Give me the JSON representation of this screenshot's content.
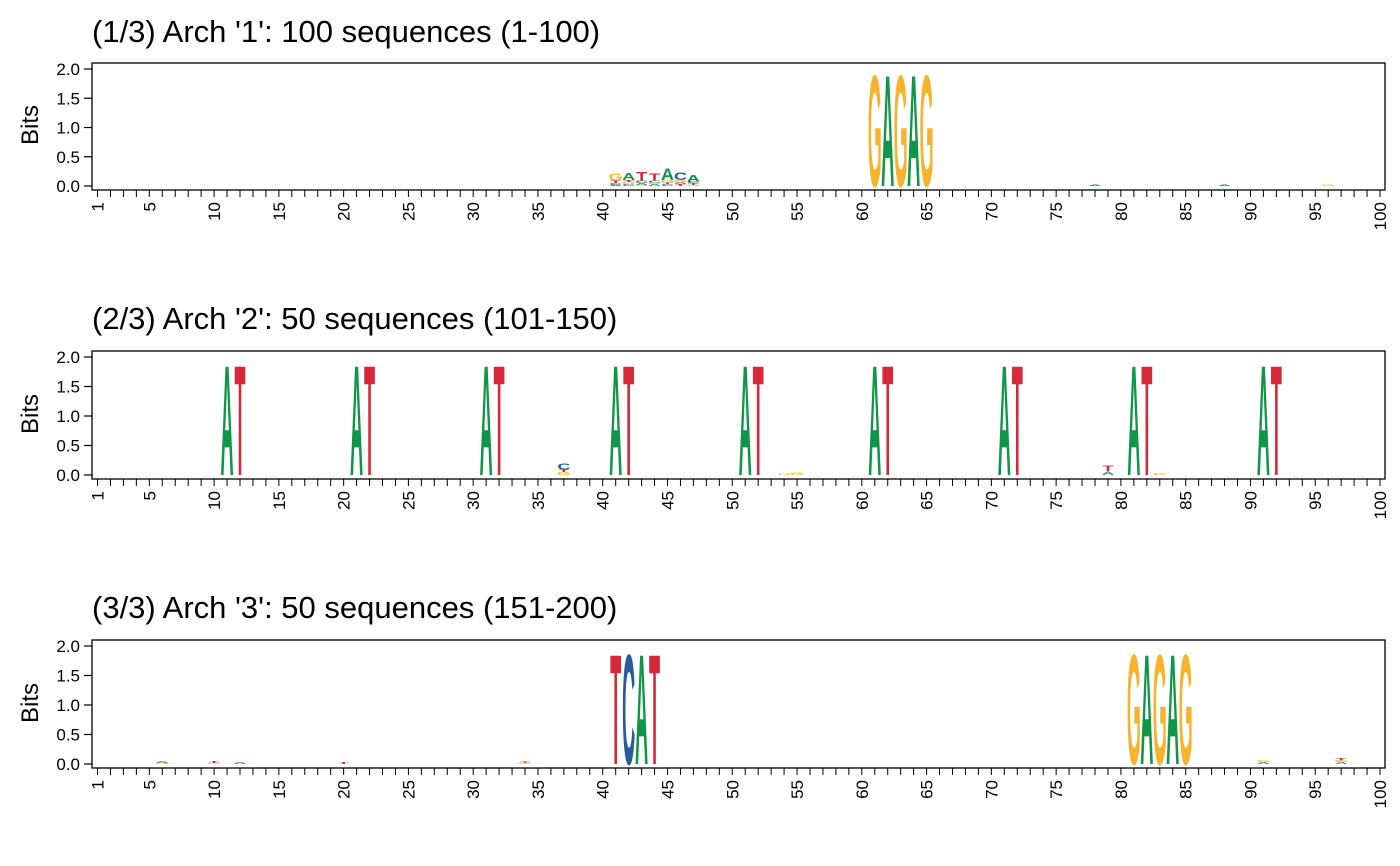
{
  "colors": {
    "A": "#109648",
    "C": "#255C99",
    "G": "#F7B32B",
    "T": "#D62839"
  },
  "chart_data": [
    {
      "type": "seqlogo",
      "title": "(1/3) Arch '1': 100 sequences (1-100)",
      "xlabel": "",
      "ylabel": "Bits",
      "ylim": [
        0,
        2
      ],
      "yticks": [
        "0.0",
        "0.5",
        "1.0",
        "1.5",
        "2.0"
      ],
      "xticks": [
        "1",
        "5",
        "10",
        "15",
        "20",
        "25",
        "30",
        "35",
        "40",
        "45",
        "50",
        "55",
        "60",
        "65",
        "70",
        "75",
        "80",
        "85",
        "90",
        "95",
        "100"
      ],
      "positions": 100,
      "stacks": [
        {
          "pos": 41,
          "letters": [
            [
              "A",
              0.02
            ],
            [
              "C",
              0.03
            ],
            [
              "T",
              0.04
            ],
            [
              "G",
              0.12
            ]
          ]
        },
        {
          "pos": 42,
          "letters": [
            [
              "C",
              0.03
            ],
            [
              "G",
              0.04
            ],
            [
              "T",
              0.03
            ],
            [
              "A",
              0.12
            ]
          ]
        },
        {
          "pos": 43,
          "letters": [
            [
              "G",
              0.02
            ],
            [
              "A",
              0.03
            ],
            [
              "C",
              0.04
            ],
            [
              "T",
              0.15
            ]
          ]
        },
        {
          "pos": 44,
          "letters": [
            [
              "A",
              0.03
            ],
            [
              "G",
              0.03
            ],
            [
              "C",
              0.03
            ],
            [
              "T",
              0.13
            ]
          ]
        },
        {
          "pos": 45,
          "letters": [
            [
              "C",
              0.03
            ],
            [
              "T",
              0.03
            ],
            [
              "G",
              0.04
            ],
            [
              "A",
              0.2
            ]
          ]
        },
        {
          "pos": 46,
          "letters": [
            [
              "T",
              0.03
            ],
            [
              "A",
              0.03
            ],
            [
              "G",
              0.04
            ],
            [
              "C",
              0.14
            ]
          ]
        },
        {
          "pos": 47,
          "letters": [
            [
              "G",
              0.02
            ],
            [
              "T",
              0.03
            ],
            [
              "C",
              0.03
            ],
            [
              "A",
              0.11
            ]
          ]
        },
        {
          "pos": 61,
          "letters": [
            [
              "G",
              1.96
            ]
          ]
        },
        {
          "pos": 62,
          "letters": [
            [
              "A",
              1.96
            ]
          ]
        },
        {
          "pos": 63,
          "letters": [
            [
              "G",
              1.96
            ]
          ]
        },
        {
          "pos": 64,
          "letters": [
            [
              "A",
              1.96
            ]
          ]
        },
        {
          "pos": 65,
          "letters": [
            [
              "G",
              1.96
            ]
          ]
        },
        {
          "pos": 78,
          "letters": [
            [
              "A",
              0.02
            ]
          ]
        },
        {
          "pos": 88,
          "letters": [
            [
              "A",
              0.02
            ]
          ]
        },
        {
          "pos": 96,
          "letters": [
            [
              "G",
              0.02
            ]
          ]
        }
      ]
    },
    {
      "type": "seqlogo",
      "title": "(2/3) Arch '2': 50 sequences (101-150)",
      "xlabel": "",
      "ylabel": "Bits",
      "ylim": [
        0,
        2
      ],
      "yticks": [
        "0.0",
        "0.5",
        "1.0",
        "1.5",
        "2.0"
      ],
      "xticks": [
        "1",
        "5",
        "10",
        "15",
        "20",
        "25",
        "30",
        "35",
        "40",
        "45",
        "50",
        "55",
        "60",
        "65",
        "70",
        "75",
        "80",
        "85",
        "90",
        "95",
        "100"
      ],
      "positions": 100,
      "stacks": [
        {
          "pos": 11,
          "letters": [
            [
              "A",
              1.92
            ]
          ]
        },
        {
          "pos": 12,
          "letters": [
            [
              "T",
              1.92
            ]
          ]
        },
        {
          "pos": 21,
          "letters": [
            [
              "A",
              1.92
            ]
          ]
        },
        {
          "pos": 22,
          "letters": [
            [
              "T",
              1.92
            ]
          ]
        },
        {
          "pos": 31,
          "letters": [
            [
              "A",
              1.92
            ]
          ]
        },
        {
          "pos": 32,
          "letters": [
            [
              "T",
              1.92
            ]
          ]
        },
        {
          "pos": 37,
          "letters": [
            [
              "G",
              0.05
            ],
            [
              "T",
              0.04
            ],
            [
              "C",
              0.1
            ]
          ]
        },
        {
          "pos": 41,
          "letters": [
            [
              "A",
              1.92
            ]
          ]
        },
        {
          "pos": 42,
          "letters": [
            [
              "T",
              1.92
            ]
          ]
        },
        {
          "pos": 51,
          "letters": [
            [
              "A",
              1.92
            ]
          ]
        },
        {
          "pos": 52,
          "letters": [
            [
              "T",
              1.92
            ]
          ]
        },
        {
          "pos": 54,
          "letters": [
            [
              "G",
              0.02
            ]
          ]
        },
        {
          "pos": 55,
          "letters": [
            [
              "G",
              0.04
            ]
          ]
        },
        {
          "pos": 61,
          "letters": [
            [
              "A",
              1.92
            ]
          ]
        },
        {
          "pos": 62,
          "letters": [
            [
              "T",
              1.92
            ]
          ]
        },
        {
          "pos": 71,
          "letters": [
            [
              "A",
              1.92
            ]
          ]
        },
        {
          "pos": 72,
          "letters": [
            [
              "T",
              1.92
            ]
          ]
        },
        {
          "pos": 79,
          "letters": [
            [
              "A",
              0.06
            ],
            [
              "T",
              0.1
            ]
          ]
        },
        {
          "pos": 81,
          "letters": [
            [
              "A",
              1.92
            ]
          ]
        },
        {
          "pos": 82,
          "letters": [
            [
              "T",
              1.92
            ]
          ]
        },
        {
          "pos": 83,
          "letters": [
            [
              "G",
              0.03
            ]
          ]
        },
        {
          "pos": 91,
          "letters": [
            [
              "A",
              1.92
            ]
          ]
        },
        {
          "pos": 92,
          "letters": [
            [
              "T",
              1.92
            ]
          ]
        }
      ]
    },
    {
      "type": "seqlogo",
      "title": "(3/3) Arch '3': 50 sequences (151-200)",
      "xlabel": "",
      "ylabel": "Bits",
      "ylim": [
        0,
        2
      ],
      "yticks": [
        "0.0",
        "0.5",
        "1.0",
        "1.5",
        "2.0"
      ],
      "xticks": [
        "1",
        "5",
        "10",
        "15",
        "20",
        "25",
        "30",
        "35",
        "40",
        "45",
        "50",
        "55",
        "60",
        "65",
        "70",
        "75",
        "80",
        "85",
        "90",
        "95",
        "100"
      ],
      "positions": 100,
      "stacks": [
        {
          "pos": 6,
          "letters": [
            [
              "G",
              0.02
            ],
            [
              "A",
              0.03
            ]
          ]
        },
        {
          "pos": 10,
          "letters": [
            [
              "G",
              0.02
            ],
            [
              "T",
              0.03
            ]
          ]
        },
        {
          "pos": 12,
          "letters": [
            [
              "A",
              0.03
            ]
          ]
        },
        {
          "pos": 20,
          "letters": [
            [
              "T",
              0.03
            ]
          ]
        },
        {
          "pos": 34,
          "letters": [
            [
              "G",
              0.02
            ],
            [
              "T",
              0.02
            ]
          ]
        },
        {
          "pos": 41,
          "letters": [
            [
              "T",
              1.92
            ]
          ]
        },
        {
          "pos": 42,
          "letters": [
            [
              "C",
              1.92
            ]
          ]
        },
        {
          "pos": 43,
          "letters": [
            [
              "A",
              1.92
            ]
          ]
        },
        {
          "pos": 44,
          "letters": [
            [
              "T",
              1.92
            ]
          ]
        },
        {
          "pos": 81,
          "letters": [
            [
              "G",
              1.92
            ]
          ]
        },
        {
          "pos": 82,
          "letters": [
            [
              "A",
              1.92
            ]
          ]
        },
        {
          "pos": 83,
          "letters": [
            [
              "G",
              1.92
            ]
          ]
        },
        {
          "pos": 84,
          "letters": [
            [
              "A",
              1.92
            ]
          ]
        },
        {
          "pos": 85,
          "letters": [
            [
              "G",
              1.92
            ]
          ]
        },
        {
          "pos": 91,
          "letters": [
            [
              "A",
              0.03
            ],
            [
              "G",
              0.03
            ]
          ]
        },
        {
          "pos": 97,
          "letters": [
            [
              "A",
              0.03
            ],
            [
              "G",
              0.03
            ],
            [
              "T",
              0.04
            ]
          ]
        }
      ]
    }
  ]
}
